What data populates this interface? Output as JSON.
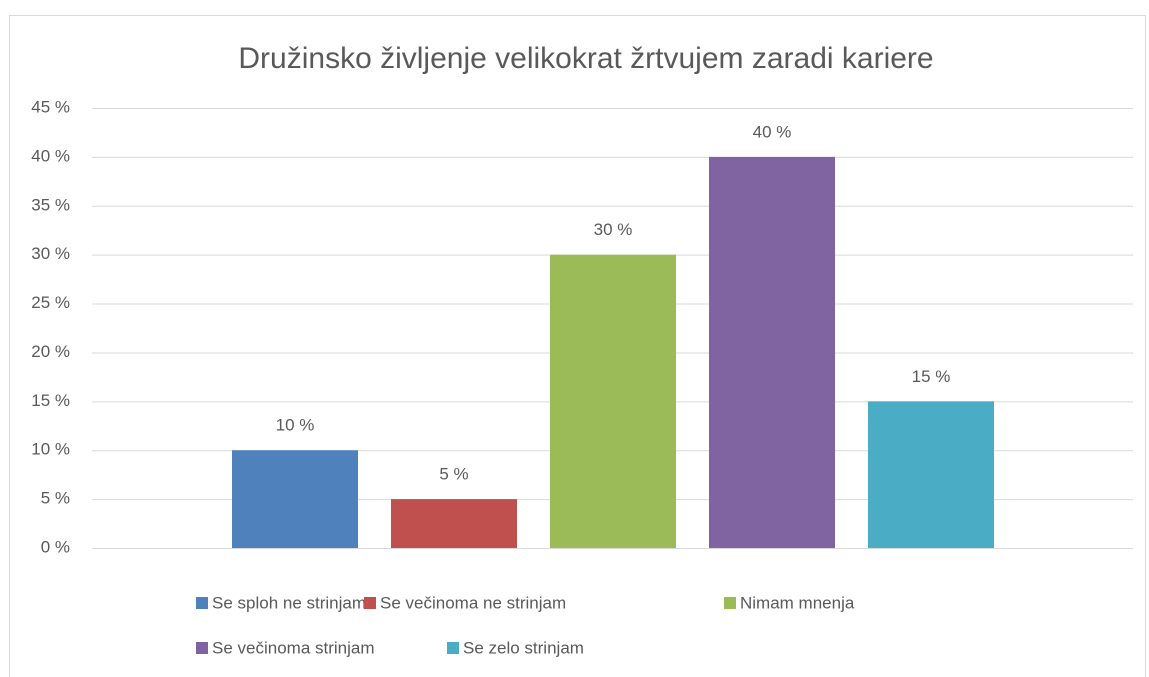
{
  "chart_data": {
    "type": "bar",
    "title": "Družinsko življenje velikokrat žrtvujem zaradi kariere",
    "categories": [
      null
    ],
    "series": [
      {
        "name": "Se sploh ne strinjam",
        "color": "#4f81bd",
        "values": [
          10
        ],
        "value_labels": [
          "10 %"
        ]
      },
      {
        "name": "Se večinoma ne strinjam",
        "color": "#c0504d",
        "values": [
          5
        ],
        "value_labels": [
          "5 %"
        ]
      },
      {
        "name": "Nimam mnenja",
        "color": "#9bbb59",
        "values": [
          30
        ],
        "value_labels": [
          "30 %"
        ]
      },
      {
        "name": "Se večinoma strinjam",
        "color": "#8064a2",
        "values": [
          40
        ],
        "value_labels": [
          "40 %"
        ]
      },
      {
        "name": "Se zelo strinjam",
        "color": "#4bacc6",
        "values": [
          15
        ],
        "value_labels": [
          "15 %"
        ]
      }
    ],
    "ylim": [
      0,
      45
    ],
    "yticks": [
      {
        "value": 0,
        "label": "0 %"
      },
      {
        "value": 5,
        "label": "5 %"
      },
      {
        "value": 10,
        "label": "10 %"
      },
      {
        "value": 15,
        "label": "15 %"
      },
      {
        "value": 20,
        "label": "20 %"
      },
      {
        "value": 25,
        "label": "25 %"
      },
      {
        "value": 30,
        "label": "30 %"
      },
      {
        "value": 35,
        "label": "35 %"
      },
      {
        "value": 40,
        "label": "40 %"
      },
      {
        "value": 45,
        "label": "45 %"
      }
    ],
    "grid": true,
    "legend": "bottom"
  }
}
